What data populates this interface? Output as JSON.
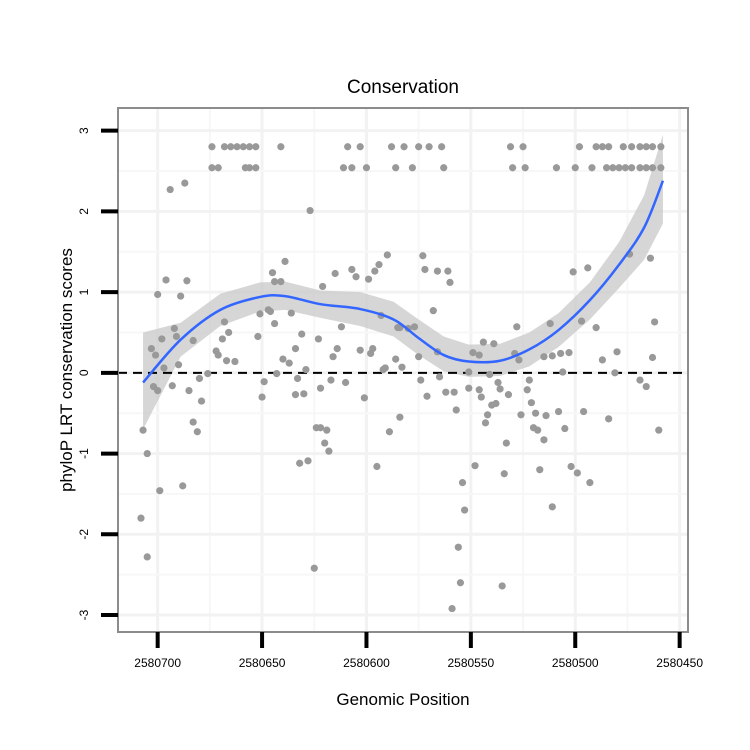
{
  "chart_data": {
    "type": "scatter",
    "title": "Conservation",
    "xlabel": "Genomic Position",
    "ylabel": "phyloP LRT conservation scores",
    "xlim": [
      2580719,
      2580446
    ],
    "x_reversed": true,
    "ylim": [
      -3.21,
      3.28
    ],
    "x_ticks": [
      2580700,
      2580650,
      2580600,
      2580550,
      2580500,
      2580450
    ],
    "x_tick_labels": [
      "2580700",
      "2580650",
      "2580600",
      "2580550",
      "2580500",
      "2580450"
    ],
    "y_ticks": [
      -3,
      -2,
      -1,
      0,
      1,
      2,
      3
    ],
    "y_tick_labels": [
      "-3",
      "-2",
      "-1",
      "0",
      "1",
      "2",
      "3"
    ],
    "grid": true,
    "reference_line": {
      "y": 0,
      "style": "dashed"
    },
    "colors": {
      "points": "#999999",
      "smooth": "#3366FF",
      "band": "#C8C8C8",
      "panel_border": "#8C8C8C"
    },
    "points": [
      [
        2580674,
        2.8
      ],
      [
        2580668,
        2.8
      ],
      [
        2580665,
        2.8
      ],
      [
        2580662,
        2.8
      ],
      [
        2580659,
        2.8
      ],
      [
        2580656,
        2.8
      ],
      [
        2580653,
        2.8
      ],
      [
        2580641,
        2.8
      ],
      [
        2580609,
        2.8
      ],
      [
        2580603,
        2.8
      ],
      [
        2580588,
        2.8
      ],
      [
        2580582,
        2.8
      ],
      [
        2580575,
        2.8
      ],
      [
        2580570,
        2.8
      ],
      [
        2580564,
        2.8
      ],
      [
        2580531,
        2.8
      ],
      [
        2580525,
        2.8
      ],
      [
        2580498,
        2.8
      ],
      [
        2580490,
        2.8
      ],
      [
        2580487,
        2.8
      ],
      [
        2580484,
        2.8
      ],
      [
        2580477,
        2.8
      ],
      [
        2580473,
        2.8
      ],
      [
        2580469,
        2.8
      ],
      [
        2580466,
        2.8
      ],
      [
        2580463,
        2.8
      ],
      [
        2580459,
        2.8
      ],
      [
        2580674,
        2.54
      ],
      [
        2580671,
        2.54
      ],
      [
        2580658,
        2.54
      ],
      [
        2580656,
        2.54
      ],
      [
        2580653,
        2.54
      ],
      [
        2580611,
        2.54
      ],
      [
        2580607,
        2.54
      ],
      [
        2580600,
        2.54
      ],
      [
        2580586,
        2.54
      ],
      [
        2580578,
        2.54
      ],
      [
        2580563,
        2.54
      ],
      [
        2580530,
        2.54
      ],
      [
        2580524,
        2.54
      ],
      [
        2580509,
        2.54
      ],
      [
        2580500,
        2.54
      ],
      [
        2580492,
        2.54
      ],
      [
        2580485,
        2.54
      ],
      [
        2580482,
        2.54
      ],
      [
        2580479,
        2.54
      ],
      [
        2580476,
        2.54
      ],
      [
        2580473,
        2.54
      ],
      [
        2580469,
        2.54
      ],
      [
        2580466,
        2.54
      ],
      [
        2580463,
        2.54
      ],
      [
        2580459,
        2.54
      ],
      [
        2580694,
        2.27
      ],
      [
        2580687,
        2.35
      ],
      [
        2580627,
        2.01
      ],
      [
        2580696,
        1.15
      ],
      [
        2580686,
        1.14
      ],
      [
        2580700,
        0.97
      ],
      [
        2580689,
        0.95
      ],
      [
        2580639,
        1.38
      ],
      [
        2580645,
        1.24
      ],
      [
        2580644,
        1.13
      ],
      [
        2580641,
        1.13
      ],
      [
        2580590,
        1.46
      ],
      [
        2580594,
        1.34
      ],
      [
        2580596,
        1.26
      ],
      [
        2580607,
        1.28
      ],
      [
        2580605,
        1.19
      ],
      [
        2580599,
        1.16
      ],
      [
        2580615,
        1.23
      ],
      [
        2580621,
        1.07
      ],
      [
        2580692,
        0.55
      ],
      [
        2580698,
        0.42
      ],
      [
        2580691,
        0.45
      ],
      [
        2580683,
        0.4
      ],
      [
        2580703,
        0.3
      ],
      [
        2580701,
        0.22
      ],
      [
        2580697,
        0.06
      ],
      [
        2580690,
        0.1
      ],
      [
        2580668,
        0.63
      ],
      [
        2580669,
        0.42
      ],
      [
        2580666,
        0.5
      ],
      [
        2580672,
        0.27
      ],
      [
        2580671,
        0.22
      ],
      [
        2580667,
        0.15
      ],
      [
        2580663,
        0.14
      ],
      [
        2580652,
        0.45
      ],
      [
        2580651,
        0.73
      ],
      [
        2580647,
        0.78
      ],
      [
        2580646,
        0.76
      ],
      [
        2580644,
        0.61
      ],
      [
        2580636,
        0.74
      ],
      [
        2580631,
        0.48
      ],
      [
        2580623,
        0.42
      ],
      [
        2580634,
        0.3
      ],
      [
        2580640,
        0.17
      ],
      [
        2580637,
        0.12
      ],
      [
        2580629,
        0.04
      ],
      [
        2580614,
        0.3
      ],
      [
        2580616,
        0.2
      ],
      [
        2580612,
        0.57
      ],
      [
        2580603,
        0.28
      ],
      [
        2580597,
        0.3
      ],
      [
        2580598,
        0.24
      ],
      [
        2580593,
        0.71
      ],
      [
        2580585,
        0.56
      ],
      [
        2580586,
        0.17
      ],
      [
        2580591,
        0.06
      ],
      [
        2580580,
        0.55
      ],
      [
        2580583,
        0.07
      ],
      [
        2580573,
        1.45
      ],
      [
        2580572,
        1.28
      ],
      [
        2580566,
        1.26
      ],
      [
        2580561,
        1.26
      ],
      [
        2580560,
        1.12
      ],
      [
        2580568,
        0.77
      ],
      [
        2580584,
        0.56
      ],
      [
        2580577,
        0.57
      ],
      [
        2580566,
        0.26
      ],
      [
        2580575,
        0.2
      ],
      [
        2580544,
        0.38
      ],
      [
        2580539,
        0.36
      ],
      [
        2580549,
        0.25
      ],
      [
        2580546,
        0.22
      ],
      [
        2580528,
        0.57
      ],
      [
        2580529,
        0.24
      ],
      [
        2580527,
        0.16
      ],
      [
        2580512,
        0.61
      ],
      [
        2580515,
        0.2
      ],
      [
        2580511,
        0.21
      ],
      [
        2580507,
        0.24
      ],
      [
        2580503,
        0.25
      ],
      [
        2580501,
        1.25
      ],
      [
        2580494,
        1.3
      ],
      [
        2580497,
        0.64
      ],
      [
        2580490,
        0.56
      ],
      [
        2580474,
        1.47
      ],
      [
        2580464,
        1.42
      ],
      [
        2580462,
        0.63
      ],
      [
        2580487,
        0.16
      ],
      [
        2580480,
        0.26
      ],
      [
        2580463,
        0.19
      ],
      [
        2580506,
        0.01
      ],
      [
        2580680,
        -0.07
      ],
      [
        2580702,
        -0.17
      ],
      [
        2580700,
        -0.22
      ],
      [
        2580693,
        -0.16
      ],
      [
        2580685,
        -0.22
      ],
      [
        2580679,
        -0.35
      ],
      [
        2580683,
        -0.61
      ],
      [
        2580681,
        -0.73
      ],
      [
        2580707,
        -0.71
      ],
      [
        2580705,
        -1.0
      ],
      [
        2580699,
        -1.46
      ],
      [
        2580688,
        -1.4
      ],
      [
        2580708,
        -1.8
      ],
      [
        2580705,
        -2.28
      ],
      [
        2580649,
        -0.11
      ],
      [
        2580643,
        -0.01
      ],
      [
        2580650,
        -0.3
      ],
      [
        2580633,
        -0.07
      ],
      [
        2580634,
        -0.27
      ],
      [
        2580630,
        -0.26
      ],
      [
        2580622,
        -0.19
      ],
      [
        2580617,
        -0.09
      ],
      [
        2580610,
        -0.12
      ],
      [
        2580601,
        -0.31
      ],
      [
        2580624,
        -0.68
      ],
      [
        2580622,
        -0.68
      ],
      [
        2580619,
        -0.71
      ],
      [
        2580620,
        -0.87
      ],
      [
        2580618,
        -0.97
      ],
      [
        2580632,
        -1.12
      ],
      [
        2580628,
        -1.09
      ],
      [
        2580595,
        -1.16
      ],
      [
        2580589,
        -0.73
      ],
      [
        2580584,
        -0.55
      ],
      [
        2580625,
        -2.42
      ],
      [
        2580592,
        0.04
      ],
      [
        2580676,
        -0.01
      ],
      [
        2580574,
        -0.09
      ],
      [
        2580565,
        -0.05
      ],
      [
        2580571,
        -0.29
      ],
      [
        2580562,
        -0.24
      ],
      [
        2580558,
        -0.24
      ],
      [
        2580551,
        -0.19
      ],
      [
        2580546,
        -0.21
      ],
      [
        2580545,
        -0.3
      ],
      [
        2580557,
        -0.46
      ],
      [
        2580537,
        -0.12
      ],
      [
        2580536,
        -0.2
      ],
      [
        2580532,
        -0.27
      ],
      [
        2580540,
        -0.4
      ],
      [
        2580538,
        -0.38
      ],
      [
        2580542,
        -0.52
      ],
      [
        2580543,
        -0.62
      ],
      [
        2580522,
        -0.09
      ],
      [
        2580523,
        -0.21
      ],
      [
        2580521,
        -0.37
      ],
      [
        2580526,
        -0.52
      ],
      [
        2580519,
        -0.5
      ],
      [
        2580514,
        -0.53
      ],
      [
        2580508,
        -0.48
      ],
      [
        2580496,
        -0.48
      ],
      [
        2580484,
        -0.57
      ],
      [
        2580520,
        -0.68
      ],
      [
        2580518,
        -0.71
      ],
      [
        2580505,
        -0.69
      ],
      [
        2580515,
        -0.83
      ],
      [
        2580533,
        -0.87
      ],
      [
        2580469,
        -0.09
      ],
      [
        2580466,
        -0.17
      ],
      [
        2580460,
        -0.71
      ],
      [
        2580548,
        -1.15
      ],
      [
        2580534,
        -1.25
      ],
      [
        2580554,
        -1.36
      ],
      [
        2580517,
        -1.2
      ],
      [
        2580502,
        -1.16
      ],
      [
        2580499,
        -1.24
      ],
      [
        2580493,
        -1.36
      ],
      [
        2580511,
        -1.66
      ],
      [
        2580553,
        -1.7
      ],
      [
        2580556,
        -2.16
      ],
      [
        2580555,
        -2.6
      ],
      [
        2580535,
        -2.64
      ],
      [
        2580559,
        -2.92
      ],
      [
        2580481,
        0.0
      ],
      [
        2580541,
        -0.02
      ],
      [
        2580551,
        0.01
      ]
    ],
    "smooth": {
      "method": "loess",
      "x": [
        2580707,
        2580689,
        2580670,
        2580651,
        2580639,
        2580622,
        2580603,
        2580587,
        2580575,
        2580563,
        2580551,
        2580536,
        2580522,
        2580508,
        2580493,
        2580479,
        2580467,
        2580458
      ],
      "y": [
        -0.12,
        0.41,
        0.78,
        0.94,
        0.95,
        0.85,
        0.79,
        0.66,
        0.43,
        0.22,
        0.14,
        0.15,
        0.29,
        0.53,
        0.9,
        1.34,
        1.8,
        2.38
      ],
      "lower": [
        -0.7,
        0.2,
        0.58,
        0.76,
        0.78,
        0.68,
        0.58,
        0.45,
        0.22,
        0.02,
        -0.05,
        -0.04,
        0.08,
        0.32,
        0.66,
        1.05,
        1.4,
        1.85
      ],
      "upper": [
        0.5,
        0.62,
        0.98,
        1.12,
        1.13,
        1.02,
        1.0,
        0.88,
        0.66,
        0.45,
        0.35,
        0.36,
        0.5,
        0.74,
        1.12,
        1.62,
        2.2,
        2.95
      ]
    }
  }
}
